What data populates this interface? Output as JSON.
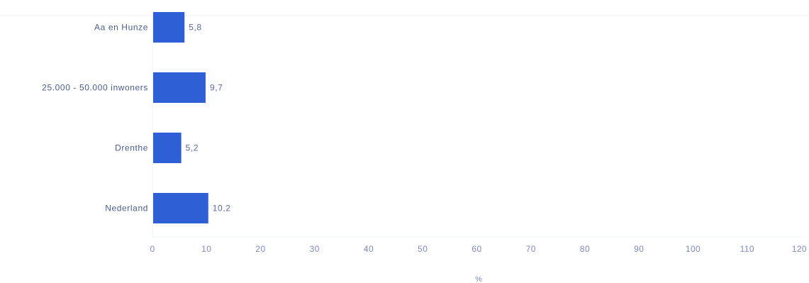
{
  "chart_data": {
    "type": "bar",
    "orientation": "horizontal",
    "categories": [
      "Aa en Hunze",
      "25.000 - 50.000 inwoners",
      "Drenthe",
      "Nederland"
    ],
    "values": [
      5.8,
      9.7,
      5.2,
      10.2
    ],
    "value_labels": [
      "5,8",
      "9,7",
      "5,2",
      "10,2"
    ],
    "xlabel": "%",
    "xlim": [
      0,
      120
    ],
    "xticks": [
      0,
      10,
      20,
      30,
      40,
      50,
      60,
      70,
      80,
      90,
      100,
      110,
      120
    ],
    "grid": false,
    "legend": "none",
    "bar_color": "#2e5fd6",
    "axis_color": "#eef3fb",
    "top_line_color": "#fbeeee"
  }
}
